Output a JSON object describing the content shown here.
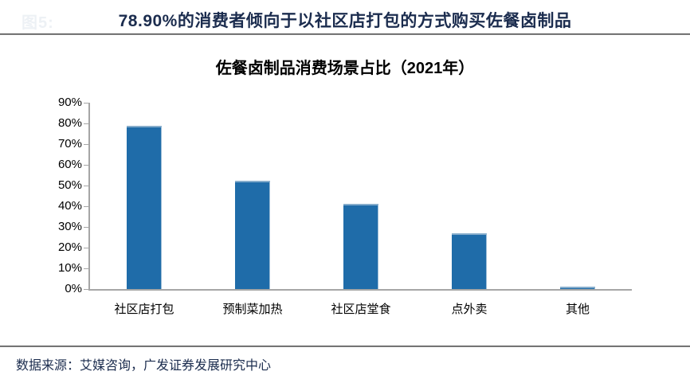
{
  "header": {
    "figure_label": "图5:",
    "title": "78.90%的消费者倾向于以社区店打包的方式购买佐餐卤制品"
  },
  "chart_data": {
    "type": "bar",
    "title": "佐餐卤制品消费场景占比（2021年）",
    "categories": [
      "社区店打包",
      "预制菜加热",
      "社区店堂食",
      "点外卖",
      "其他"
    ],
    "values": [
      78.9,
      52.4,
      41.3,
      26.9,
      0.5
    ],
    "xlabel": "",
    "ylabel": "",
    "ylim": [
      0,
      90
    ],
    "ytick_step": 10,
    "ytick_labels": [
      "0%",
      "10%",
      "20%",
      "30%",
      "40%",
      "50%",
      "60%",
      "70%",
      "80%",
      "90%"
    ],
    "grid": false,
    "legend_position": "none",
    "bar_color": "#1f6ca9",
    "bar_edge_color": "#85accb",
    "axis_color": "#a6a6a6"
  },
  "footer": {
    "source": "数据来源：艾媒咨询，广发证券发展研究中心"
  }
}
